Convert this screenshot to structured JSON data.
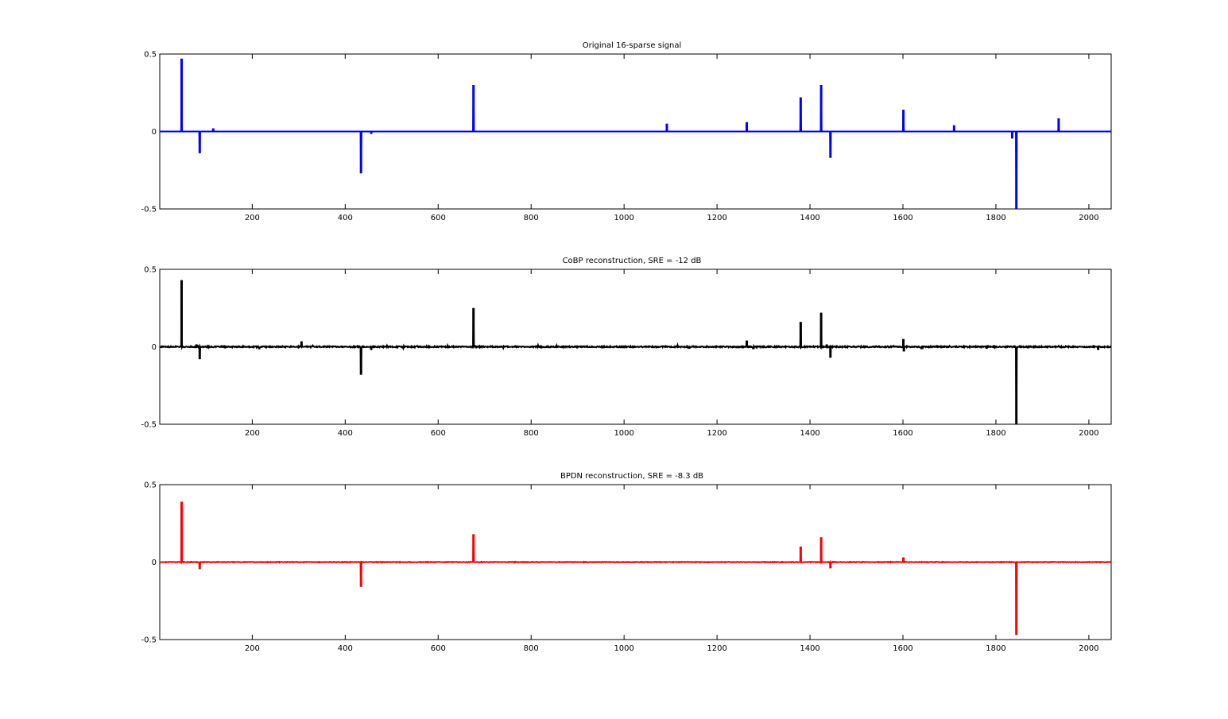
{
  "chart_data": [
    {
      "type": "line",
      "title": "Original 16-sparse signal",
      "color": "#0000ff",
      "xlim": [
        1,
        2048
      ],
      "ylim": [
        -0.5,
        0.5
      ],
      "xticks": [
        200,
        400,
        600,
        800,
        1000,
        1200,
        1400,
        1600,
        1800,
        2000
      ],
      "yticks": [
        -0.5,
        0,
        0.5
      ],
      "ytick_labels": [
        "-0.5",
        "0",
        "0.5"
      ],
      "spikes": [
        {
          "x": 48,
          "y": 0.47
        },
        {
          "x": 87,
          "y": -0.14
        },
        {
          "x": 116,
          "y": 0.02
        },
        {
          "x": 434,
          "y": -0.27
        },
        {
          "x": 456,
          "y": -0.015
        },
        {
          "x": 676,
          "y": 0.3
        },
        {
          "x": 1092,
          "y": 0.05
        },
        {
          "x": 1264,
          "y": 0.06
        },
        {
          "x": 1380,
          "y": 0.22
        },
        {
          "x": 1424,
          "y": 0.3
        },
        {
          "x": 1444,
          "y": -0.17
        },
        {
          "x": 1601,
          "y": 0.14
        },
        {
          "x": 1710,
          "y": 0.04
        },
        {
          "x": 1835,
          "y": -0.045
        },
        {
          "x": 1844,
          "y": -0.5
        },
        {
          "x": 1935,
          "y": 0.085
        }
      ],
      "noise": 0
    },
    {
      "type": "line",
      "title": "CoBP reconstruction, SRE = -12 dB",
      "color": "#000000",
      "xlim": [
        1,
        2048
      ],
      "ylim": [
        -0.5,
        0.5
      ],
      "xticks": [
        200,
        400,
        600,
        800,
        1000,
        1200,
        1400,
        1600,
        1800,
        2000
      ],
      "yticks": [
        -0.5,
        0,
        0.5
      ],
      "ytick_labels": [
        "-0.5",
        "0",
        "0.5"
      ],
      "spikes": [
        {
          "x": 48,
          "y": 0.43
        },
        {
          "x": 80,
          "y": 0.015
        },
        {
          "x": 87,
          "y": -0.08
        },
        {
          "x": 215,
          "y": -0.015
        },
        {
          "x": 306,
          "y": 0.035
        },
        {
          "x": 330,
          "y": 0.008
        },
        {
          "x": 434,
          "y": -0.18
        },
        {
          "x": 456,
          "y": -0.02
        },
        {
          "x": 490,
          "y": 0.008
        },
        {
          "x": 525,
          "y": -0.01
        },
        {
          "x": 555,
          "y": 0.006
        },
        {
          "x": 620,
          "y": 0.008
        },
        {
          "x": 676,
          "y": 0.25
        },
        {
          "x": 740,
          "y": -0.008
        },
        {
          "x": 815,
          "y": 0.01
        },
        {
          "x": 855,
          "y": 0.008
        },
        {
          "x": 1115,
          "y": 0.01
        },
        {
          "x": 1140,
          "y": -0.012
        },
        {
          "x": 1264,
          "y": 0.04
        },
        {
          "x": 1278,
          "y": -0.015
        },
        {
          "x": 1380,
          "y": 0.16
        },
        {
          "x": 1424,
          "y": 0.22
        },
        {
          "x": 1436,
          "y": 0.015
        },
        {
          "x": 1444,
          "y": -0.07
        },
        {
          "x": 1580,
          "y": 0.006
        },
        {
          "x": 1601,
          "y": 0.05
        },
        {
          "x": 1602,
          "y": -0.03
        },
        {
          "x": 1640,
          "y": -0.015
        },
        {
          "x": 1700,
          "y": 0.006
        },
        {
          "x": 1780,
          "y": -0.012
        },
        {
          "x": 1844,
          "y": -0.5
        },
        {
          "x": 1935,
          "y": 0.006
        },
        {
          "x": 2020,
          "y": -0.02
        }
      ],
      "noise": 0.004
    },
    {
      "type": "line",
      "title": "BPDN reconstruction, SRE = -8.3 dB",
      "color": "#ff0000",
      "xlim": [
        1,
        2048
      ],
      "ylim": [
        -0.5,
        0.5
      ],
      "xticks": [
        200,
        400,
        600,
        800,
        1000,
        1200,
        1400,
        1600,
        1800,
        2000
      ],
      "yticks": [
        -0.5,
        0,
        0.5
      ],
      "ytick_labels": [
        "-0.5",
        "0",
        "0.5"
      ],
      "spikes": [
        {
          "x": 48,
          "y": 0.39
        },
        {
          "x": 87,
          "y": -0.045
        },
        {
          "x": 434,
          "y": -0.16
        },
        {
          "x": 676,
          "y": 0.18
        },
        {
          "x": 1380,
          "y": 0.1
        },
        {
          "x": 1424,
          "y": 0.16
        },
        {
          "x": 1444,
          "y": -0.04
        },
        {
          "x": 1601,
          "y": 0.03
        },
        {
          "x": 1844,
          "y": -0.47
        }
      ],
      "noise": 0.002
    }
  ]
}
